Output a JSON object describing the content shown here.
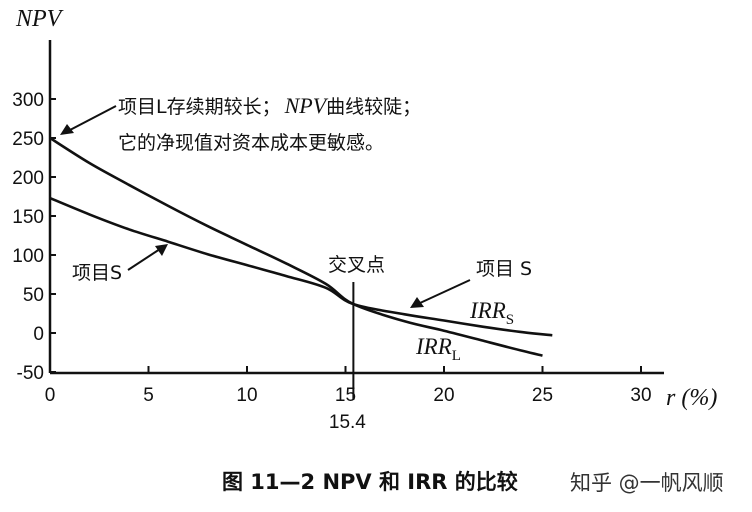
{
  "chart_data": {
    "type": "line",
    "title": "",
    "ylabel": "NPV",
    "xlabel": "r (%)",
    "xlim": [
      0,
      30
    ],
    "ylim": [
      -50,
      300
    ],
    "x_ticks": [
      0,
      5,
      10,
      15,
      20,
      25,
      30
    ],
    "y_ticks": [
      -50,
      0,
      50,
      100,
      150,
      200,
      250,
      300
    ],
    "series": [
      {
        "name": "项目S",
        "x": [
          0,
          2,
          4,
          6,
          8,
          10,
          12,
          14,
          15.4,
          18,
          20,
          22,
          24,
          25.5
        ],
        "y": [
          173,
          152,
          133,
          117,
          101,
          87,
          73,
          58,
          37,
          24,
          16,
          8,
          1,
          -3
        ]
      },
      {
        "name": "项目L",
        "x": [
          0,
          2,
          4,
          6,
          8,
          10,
          12,
          14,
          15.4,
          18,
          20,
          22,
          24,
          25
        ],
        "y": [
          250,
          218,
          190,
          163,
          137,
          113,
          89,
          63,
          37,
          15,
          3,
          -10,
          -23,
          -29
        ]
      }
    ],
    "crossover": {
      "x": 15.4,
      "y": 37,
      "label": "15.4"
    },
    "annotations": {
      "project_l_line1": "项目L存续期较长；",
      "project_l_npv": "NPV",
      "project_l_line1b": "曲线较陡；",
      "project_l_line2": "它的净现值对资本成本更敏感。",
      "project_s_left": "项目S",
      "crossover_label": "交叉点",
      "project_s_right": "项目 S",
      "irr_s": "IRR",
      "irr_s_sub": "S",
      "irr_l": "IRR",
      "irr_l_sub": "L"
    },
    "grid": false,
    "legend": "none"
  },
  "caption": "图 11—2   NPV 和 IRR 的比较",
  "watermark": "知乎 @一帆风顺"
}
